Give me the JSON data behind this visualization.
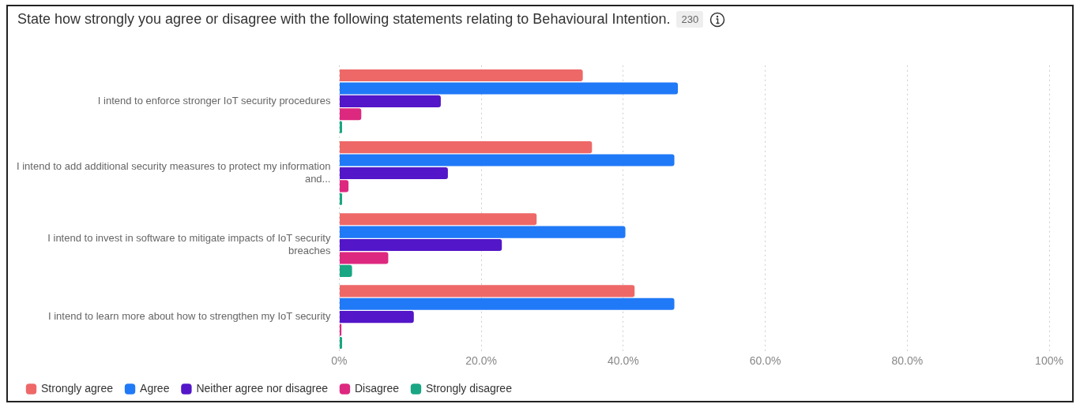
{
  "chart_data": {
    "type": "bar",
    "orientation": "horizontal",
    "title": "State how strongly you agree or disagree with the following statements relating to Behavioural Intention.",
    "annotations": [
      "230"
    ],
    "categories": [
      "I intend to enforce stronger IoT security procedures",
      "I intend to add additional security measures to protect my information and...",
      "I intend to invest in software to mitigate impacts of IoT security breaches",
      "I intend to learn more about how to strengthen my IoT security"
    ],
    "series": [
      {
        "name": "Strongly agree",
        "color": "#ee6868",
        "values": [
          34.3,
          35.6,
          27.8,
          41.6
        ]
      },
      {
        "name": "Agree",
        "color": "#2079f7",
        "values": [
          47.7,
          47.2,
          40.3,
          47.2
        ]
      },
      {
        "name": "Neither agree nor disagree",
        "color": "#5316c8",
        "values": [
          14.3,
          15.3,
          22.9,
          10.5
        ]
      },
      {
        "name": "Disagree",
        "color": "#dd2880",
        "values": [
          3.1,
          1.3,
          6.9,
          0.3
        ]
      },
      {
        "name": "Strongly disagree",
        "color": "#19a683",
        "values": [
          0.4,
          0.4,
          1.8,
          0.4
        ]
      }
    ],
    "xlim": [
      0,
      100
    ],
    "xticks": [
      {
        "value": 0,
        "label": "0%"
      },
      {
        "value": 20,
        "label": "20.0%"
      },
      {
        "value": 40,
        "label": "40.0%"
      },
      {
        "value": 60,
        "label": "60.0%"
      },
      {
        "value": 80,
        "label": "80.0%"
      },
      {
        "value": 100,
        "label": "100%"
      }
    ],
    "grid": "x",
    "legend": "bottom left"
  }
}
